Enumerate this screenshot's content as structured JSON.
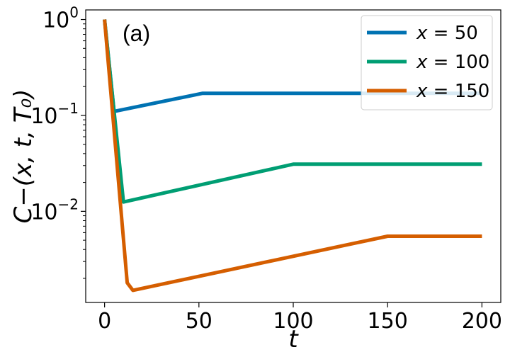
{
  "chart_data": {
    "type": "line",
    "title": "",
    "annotation": "(a)",
    "xlabel": "t",
    "ylabel": "C−(x, t, T₀)",
    "xlim": [
      -10,
      210
    ],
    "ylim_log10": [
      -2.95,
      0.1
    ],
    "yscale": "log",
    "x_ticks": [
      0,
      50,
      100,
      150,
      200
    ],
    "x_tick_labels": [
      "0",
      "50",
      "100",
      "150",
      "200"
    ],
    "y_ticks_log10": [
      -2,
      -1,
      0
    ],
    "y_tick_bases": [
      "10",
      "10",
      "10"
    ],
    "y_tick_exponents": [
      "−2",
      "−1",
      "0"
    ],
    "legend_position": "top-right",
    "series": [
      {
        "name": "x = 50",
        "legend_var": "x",
        "legend_eq": "= 50",
        "color": "#0072B2",
        "points": [
          [
            0,
            1.0
          ],
          [
            5,
            0.11
          ],
          [
            52,
            0.17
          ],
          [
            200,
            0.17
          ]
        ]
      },
      {
        "name": "x = 100",
        "legend_var": "x",
        "legend_eq": "= 100",
        "color": "#009E73",
        "points": [
          [
            0,
            1.0
          ],
          [
            10,
            0.0125
          ],
          [
            100,
            0.031
          ],
          [
            200,
            0.031
          ]
        ]
      },
      {
        "name": "x = 150",
        "legend_var": "x",
        "legend_eq": "= 150",
        "color": "#D55E00",
        "points": [
          [
            0,
            1.0
          ],
          [
            12,
            0.0018
          ],
          [
            15,
            0.0015
          ],
          [
            150,
            0.0055
          ],
          [
            200,
            0.0055
          ]
        ]
      }
    ]
  }
}
